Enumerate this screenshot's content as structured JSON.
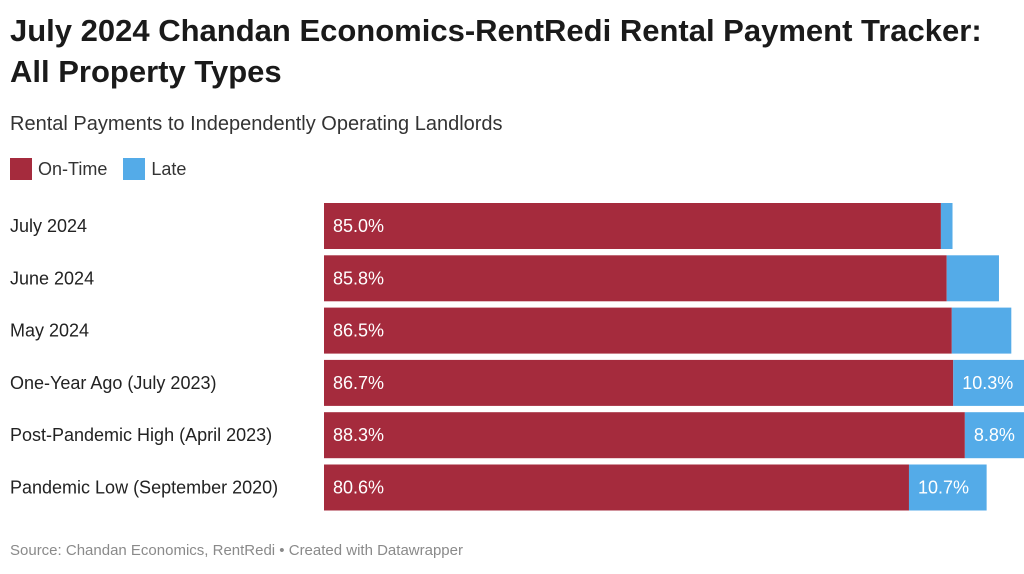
{
  "title": "July 2024 Chandan Economics-RentRedi Rental Payment Tracker: All Property Types",
  "subtitle": "Rental Payments to Independently Operating Landlords",
  "source": "Source: Chandan Economics, RentRedi • Created with Datawrapper",
  "colors": {
    "on_time": "#a52b3d",
    "late": "#54abe8"
  },
  "chart_data": {
    "type": "bar",
    "orientation": "horizontal",
    "stacked": true,
    "categories": [
      "July 2024",
      "June 2024",
      "May 2024",
      "One-Year Ago (July 2023)",
      "Post-Pandemic High (April 2023)",
      "Pandemic Low (September 2020)"
    ],
    "series": [
      {
        "name": "On-Time",
        "values": [
          85.0,
          85.8,
          86.5,
          86.7,
          88.3,
          80.6
        ],
        "labels": [
          "85.0%",
          "85.8%",
          "86.5%",
          "86.7%",
          "88.3%",
          "80.6%"
        ]
      },
      {
        "name": "Late",
        "values": [
          1.6,
          7.2,
          8.2,
          10.3,
          8.8,
          10.7
        ],
        "labels": [
          "",
          "",
          "",
          "10.3%",
          "8.8%",
          "10.7%"
        ]
      }
    ],
    "xlim": [
      0,
      97
    ],
    "legend_position": "top-left",
    "grid": false
  }
}
